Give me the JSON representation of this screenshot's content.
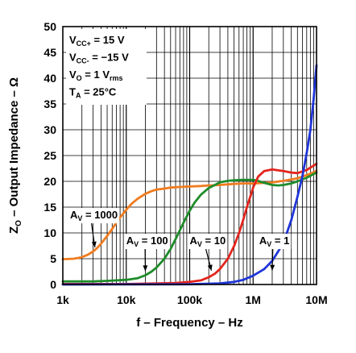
{
  "chart_data": {
    "type": "line",
    "title": "",
    "xlabel": "f – Frequency – Hz",
    "ylabel": "Z",
    "ylabel_sub": "O",
    "ylabel_rest": " – Output Impedance – Ω",
    "x_scale": "log",
    "xlim": [
      1000,
      10000000
    ],
    "ylim": [
      0,
      50
    ],
    "grid": true,
    "x_ticks": [
      {
        "value": 1000,
        "label": "1k"
      },
      {
        "value": 10000,
        "label": "10k"
      },
      {
        "value": 100000,
        "label": "100k"
      },
      {
        "value": 1000000,
        "label": "1M"
      },
      {
        "value": 10000000,
        "label": "10M"
      }
    ],
    "y_ticks": [
      0,
      5,
      10,
      15,
      20,
      25,
      30,
      35,
      40,
      45,
      50
    ],
    "conditions": [
      {
        "main": "V",
        "sub": "CC+",
        "rest": " = 15 V"
      },
      {
        "main": "V",
        "sub": "CC-",
        "rest": " = −15 V"
      },
      {
        "main": "V",
        "sub": "O",
        "rest": " = 1 V",
        "sub2": "rms"
      },
      {
        "main": "T",
        "sub": "A",
        "rest": " = 25°C"
      }
    ],
    "series": [
      {
        "label_main": "A",
        "label_sub": "V",
        "label_rest": " = 1000",
        "color": "#f07b1e",
        "label_at": [
          1300,
          12.8
        ],
        "arrow_to": [
          3200,
          7.2
        ],
        "points": [
          [
            1000,
            4.9
          ],
          [
            1500,
            5.0
          ],
          [
            2000,
            5.3
          ],
          [
            2500,
            5.8
          ],
          [
            3000,
            6.4
          ],
          [
            3500,
            7.1
          ],
          [
            4000,
            7.9
          ],
          [
            5000,
            9.4
          ],
          [
            6000,
            10.8
          ],
          [
            7000,
            12.0
          ],
          [
            8000,
            13.0
          ],
          [
            10000,
            14.5
          ],
          [
            12000,
            15.6
          ],
          [
            15000,
            16.6
          ],
          [
            20000,
            17.6
          ],
          [
            25000,
            18.1
          ],
          [
            30000,
            18.4
          ],
          [
            40000,
            18.6
          ],
          [
            50000,
            18.8
          ],
          [
            70000,
            18.9
          ],
          [
            100000,
            19.0
          ],
          [
            150000,
            19.1
          ],
          [
            200000,
            19.2
          ],
          [
            300000,
            19.3
          ],
          [
            500000,
            19.5
          ],
          [
            700000,
            19.6
          ],
          [
            1000000,
            19.6
          ],
          [
            1500000,
            19.7
          ],
          [
            2000000,
            19.8
          ],
          [
            3000000,
            20.1
          ],
          [
            5000000,
            20.6
          ],
          [
            7000000,
            21.2
          ],
          [
            10000000,
            22.0
          ]
        ]
      },
      {
        "label_main": "A",
        "label_sub": "V",
        "label_rest": " = 100",
        "color": "#1e8c2a",
        "label_at": [
          10000,
          7.8
        ],
        "arrow_to": [
          20000,
          2.6
        ],
        "points": [
          [
            1000,
            0.6
          ],
          [
            3000,
            0.6
          ],
          [
            5000,
            0.7
          ],
          [
            10000,
            0.9
          ],
          [
            15000,
            1.2
          ],
          [
            20000,
            1.8
          ],
          [
            25000,
            2.5
          ],
          [
            30000,
            3.3
          ],
          [
            40000,
            5.0
          ],
          [
            50000,
            6.9
          ],
          [
            60000,
            8.8
          ],
          [
            70000,
            10.5
          ],
          [
            80000,
            12.0
          ],
          [
            100000,
            14.3
          ],
          [
            120000,
            15.9
          ],
          [
            150000,
            17.4
          ],
          [
            200000,
            18.7
          ],
          [
            250000,
            19.3
          ],
          [
            300000,
            19.8
          ],
          [
            400000,
            20.1
          ],
          [
            500000,
            20.2
          ],
          [
            700000,
            20.3
          ],
          [
            1000000,
            20.3
          ],
          [
            1200000,
            20.1
          ],
          [
            1500000,
            19.7
          ],
          [
            2000000,
            19.3
          ],
          [
            2500000,
            19.2
          ],
          [
            3000000,
            19.3
          ],
          [
            4000000,
            19.6
          ],
          [
            5000000,
            20.0
          ],
          [
            7000000,
            20.7
          ],
          [
            10000000,
            21.7
          ]
        ]
      },
      {
        "label_main": "A",
        "label_sub": "V",
        "label_rest": " = 10",
        "color": "#e3241c",
        "label_at": [
          100000,
          7.8
        ],
        "arrow_to": [
          220000,
          2.7
        ],
        "points": [
          [
            1000,
            0.1
          ],
          [
            10000,
            0.1
          ],
          [
            30000,
            0.2
          ],
          [
            60000,
            0.3
          ],
          [
            100000,
            0.5
          ],
          [
            150000,
            0.8
          ],
          [
            200000,
            1.4
          ],
          [
            250000,
            2.1
          ],
          [
            300000,
            3.0
          ],
          [
            400000,
            5.0
          ],
          [
            500000,
            7.4
          ],
          [
            600000,
            10.0
          ],
          [
            700000,
            12.6
          ],
          [
            800000,
            15.0
          ],
          [
            1000000,
            18.8
          ],
          [
            1200000,
            20.9
          ],
          [
            1500000,
            22.0
          ],
          [
            2000000,
            22.3
          ],
          [
            3000000,
            22.0
          ],
          [
            4000000,
            21.7
          ],
          [
            5000000,
            21.6
          ],
          [
            7000000,
            22.2
          ],
          [
            10000000,
            23.4
          ]
        ]
      },
      {
        "label_main": "A",
        "label_sub": "V",
        "label_rest": " = 1",
        "color": "#1f35d8",
        "label_at": [
          1250000,
          7.8
        ],
        "arrow_to": [
          2000000,
          2.7
        ],
        "points": [
          [
            1000,
            0.0
          ],
          [
            100000,
            0.05
          ],
          [
            300000,
            0.2
          ],
          [
            500000,
            0.5
          ],
          [
            700000,
            0.9
          ],
          [
            1000000,
            1.7
          ],
          [
            1500000,
            3.0
          ],
          [
            2000000,
            4.6
          ],
          [
            3000000,
            8.0
          ],
          [
            4000000,
            12.5
          ],
          [
            5000000,
            17.0
          ],
          [
            6000000,
            21.0
          ],
          [
            7000000,
            25.5
          ],
          [
            8000000,
            30.0
          ],
          [
            9000000,
            36.0
          ],
          [
            10000000,
            42.5
          ]
        ]
      }
    ]
  }
}
